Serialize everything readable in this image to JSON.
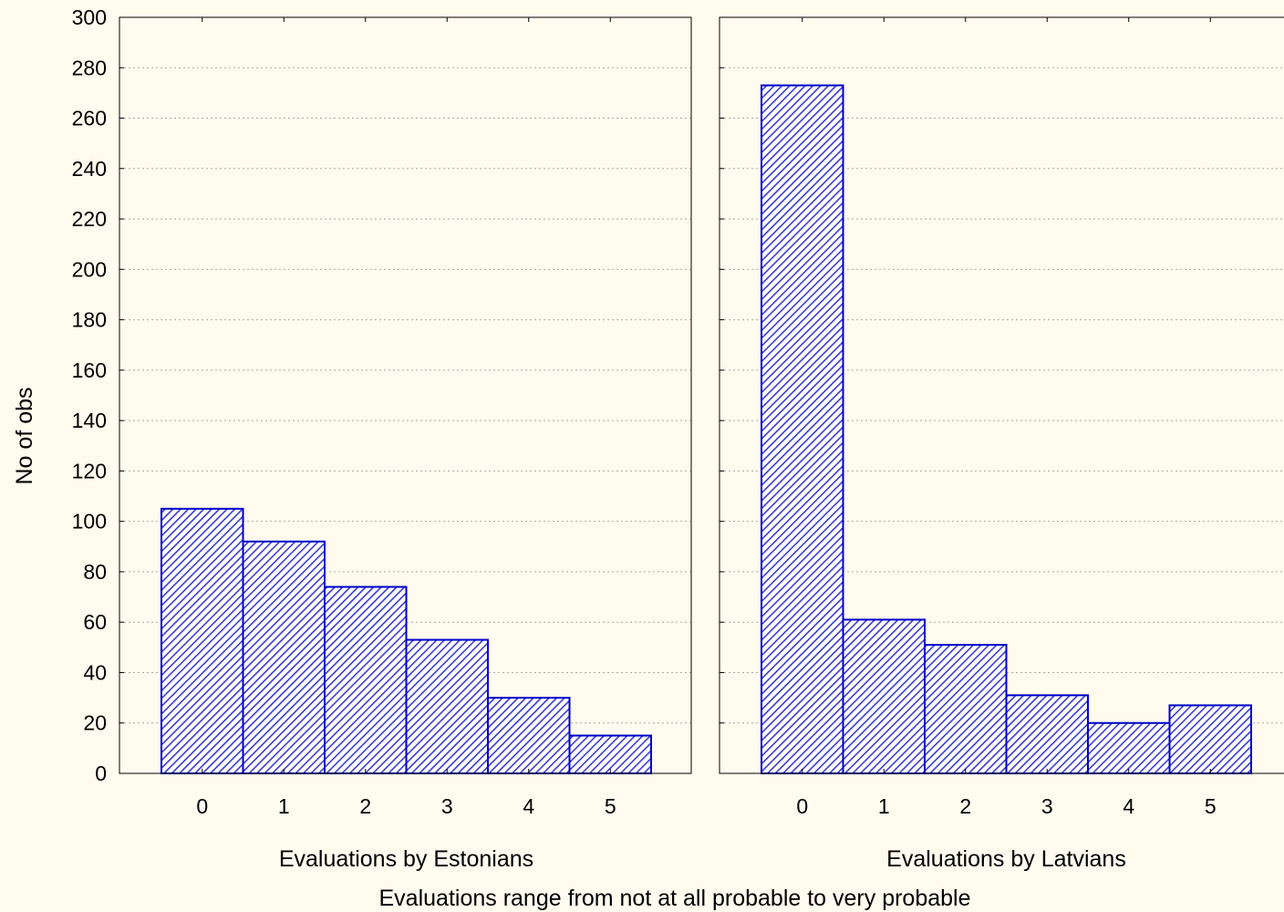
{
  "chart_data": {
    "type": "bar",
    "ylabel": "No of obs",
    "xlabel": "Evaluations range from not at all probable to very probable",
    "ylim": [
      0,
      300
    ],
    "y_ticks": [
      0,
      20,
      40,
      60,
      80,
      100,
      120,
      140,
      160,
      180,
      200,
      220,
      240,
      260,
      280,
      300
    ],
    "grid": true,
    "colors": {
      "bar_stroke": "#0000cc",
      "hatch": "#3b3bd6",
      "bar_fill": "#ffffff",
      "grid": "#aaaaaa",
      "background": "#fffbee"
    },
    "panels": [
      {
        "title": "Evaluations by Estonians",
        "categories": [
          "0",
          "1",
          "2",
          "3",
          "4",
          "5"
        ],
        "values": [
          105,
          92,
          74,
          53,
          30,
          15
        ]
      },
      {
        "title": "Evaluations by Latvians",
        "categories": [
          "0",
          "1",
          "2",
          "3",
          "4",
          "5"
        ],
        "values": [
          273,
          61,
          51,
          31,
          20,
          27
        ]
      }
    ]
  }
}
